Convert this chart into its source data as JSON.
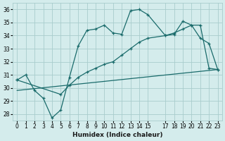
{
  "xlabel": "Humidex (Indice chaleur)",
  "bg_color": "#d4ecec",
  "grid_color": "#a8cccc",
  "line_color": "#1a6b6b",
  "xlim": [
    -0.5,
    23.5
  ],
  "ylim": [
    27.5,
    36.5
  ],
  "yticks": [
    28,
    29,
    30,
    31,
    32,
    33,
    34,
    35,
    36
  ],
  "xtick_positions": [
    0,
    1,
    2,
    3,
    4,
    5,
    6,
    7,
    8,
    9,
    10,
    11,
    12,
    13,
    14,
    15,
    17,
    18,
    19,
    20,
    21,
    22,
    23
  ],
  "xtick_labels": [
    "0",
    "1",
    "2",
    "3",
    "4",
    "5",
    "6",
    "7",
    "8",
    "9",
    "10",
    "11",
    "12",
    "13",
    "14",
    "15",
    "17",
    "18",
    "19",
    "20",
    "21",
    "22",
    "23"
  ],
  "line1_x": [
    0,
    1,
    2,
    3,
    4,
    5,
    6,
    7,
    8,
    9,
    10,
    11,
    12,
    13,
    14,
    15,
    17,
    18,
    19,
    20,
    21,
    22,
    23
  ],
  "line1_y": [
    30.6,
    31.0,
    29.8,
    29.2,
    27.7,
    28.3,
    30.8,
    33.2,
    34.4,
    34.5,
    34.8,
    34.2,
    34.1,
    35.9,
    36.0,
    35.6,
    34.0,
    34.1,
    35.1,
    34.8,
    33.8,
    33.4,
    31.4
  ],
  "line2_x": [
    0,
    5,
    6,
    7,
    8,
    9,
    10,
    11,
    12,
    13,
    14,
    15,
    17,
    18,
    19,
    20,
    21,
    22,
    23
  ],
  "line2_y": [
    30.6,
    29.5,
    30.2,
    30.8,
    31.2,
    31.5,
    31.8,
    32.0,
    32.5,
    33.0,
    33.5,
    33.8,
    34.0,
    34.2,
    34.5,
    34.8,
    34.8,
    31.5,
    31.4
  ],
  "line3_x": [
    0,
    23
  ],
  "line3_y": [
    29.8,
    31.4
  ]
}
